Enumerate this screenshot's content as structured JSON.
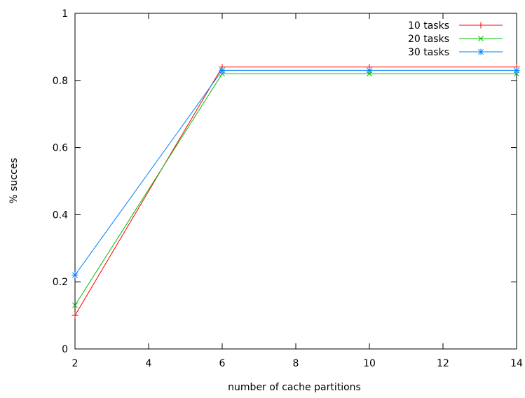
{
  "chart_data": {
    "type": "line",
    "xlabel": "number of cache partitions",
    "ylabel": "% succes",
    "xlim": [
      2,
      14
    ],
    "ylim": [
      0,
      1
    ],
    "xticks": [
      2,
      4,
      6,
      8,
      10,
      12,
      14
    ],
    "yticks": [
      0,
      0.2,
      0.4,
      0.6,
      0.8,
      1
    ],
    "ytick_labels": [
      "0",
      "0.2",
      "0.4",
      "0.6",
      "0.8",
      "1"
    ],
    "grid": false,
    "legend_position": "top-right",
    "series": [
      {
        "name": "10 tasks",
        "color": "#ff0000",
        "marker": "plus",
        "x": [
          2,
          6,
          10,
          14
        ],
        "y": [
          0.1,
          0.84,
          0.84,
          0.84
        ]
      },
      {
        "name": "20 tasks",
        "color": "#00c000",
        "marker": "cross",
        "x": [
          2,
          6,
          10,
          14
        ],
        "y": [
          0.13,
          0.82,
          0.82,
          0.82
        ]
      },
      {
        "name": "30 tasks",
        "color": "#0080ff",
        "marker": "asterisk",
        "x": [
          2,
          6,
          10,
          14
        ],
        "y": [
          0.22,
          0.83,
          0.83,
          0.83
        ]
      }
    ]
  }
}
